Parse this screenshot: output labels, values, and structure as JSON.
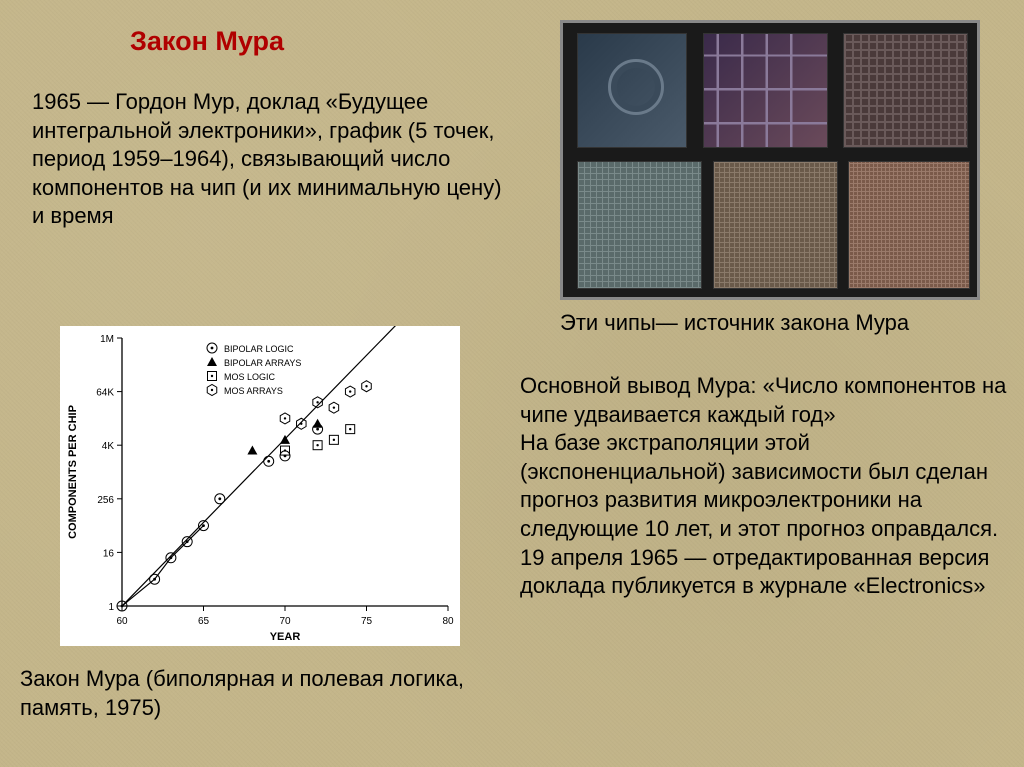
{
  "title": "Закон Мура",
  "intro": "1965 — Гордон Мур, доклад «Будущее интегральной электроники», график (5 точек, период 1959–1964), связывающий число компонентов на чип (и их минимальную цену) и время",
  "chip_caption": "Эти чипы— источник закона Мура",
  "chart_caption": "Закон Мура (биполярная и полевая логика, память, 1975)",
  "body": "Основной вывод Мура: «Число компонентов на чипе удваивается каждый год»\nНа базе экстраполяции этой (экспоненциальной) зависимости был сделан прогноз развития микроэлектроники на следующие 10 лет, и этот прогноз оправдался.\n19 апреля 1965 — отредактированная версия доклада публикуется в журнале «Electronics»",
  "chart": {
    "type": "scatter-log",
    "xlabel": "YEAR",
    "ylabel": "COMPONENTS PER CHIP",
    "xlim": [
      60,
      80
    ],
    "xtick_step": 5,
    "yticks": [
      1,
      16,
      256,
      "4K",
      "64K",
      "1M"
    ],
    "yscale": "log",
    "font": "sans-serif",
    "label_fontsize": 11,
    "tick_fontsize": 10,
    "legend_fontsize": 9,
    "axis_color": "#000000",
    "background_color": "#ffffff",
    "marker_size": 5,
    "line_width": 1.2,
    "legend": [
      {
        "label": "BIPOLAR LOGIC",
        "marker": "circle-dot"
      },
      {
        "label": "BIPOLAR ARRAYS",
        "marker": "triangle"
      },
      {
        "label": "MOS LOGIC",
        "marker": "square"
      },
      {
        "label": "MOS ARRAYS",
        "marker": "hexagon"
      }
    ],
    "trend_line": {
      "x1": 60,
      "y1_log": 0,
      "x2": 77,
      "y2_log": 5.3
    },
    "line_connect": [
      {
        "x": 60,
        "ylog": 0
      },
      {
        "x": 62,
        "ylog": 0.5
      },
      {
        "x": 63,
        "ylog": 0.9
      },
      {
        "x": 64,
        "ylog": 1.2
      },
      {
        "x": 65,
        "ylog": 1.5
      }
    ],
    "points": {
      "circle-dot": [
        {
          "x": 60,
          "ylog": 0
        },
        {
          "x": 62,
          "ylog": 0.5
        },
        {
          "x": 63,
          "ylog": 0.9
        },
        {
          "x": 64,
          "ylog": 1.2
        },
        {
          "x": 65,
          "ylog": 1.5
        },
        {
          "x": 66,
          "ylog": 2.0
        },
        {
          "x": 69,
          "ylog": 2.7
        },
        {
          "x": 70,
          "ylog": 2.8
        },
        {
          "x": 72,
          "ylog": 3.3
        }
      ],
      "triangle": [
        {
          "x": 68,
          "ylog": 2.9
        },
        {
          "x": 70,
          "ylog": 3.1
        },
        {
          "x": 72,
          "ylog": 3.4
        }
      ],
      "square": [
        {
          "x": 70,
          "ylog": 2.9
        },
        {
          "x": 72,
          "ylog": 3.0
        },
        {
          "x": 73,
          "ylog": 3.1
        },
        {
          "x": 74,
          "ylog": 3.3
        }
      ],
      "hexagon": [
        {
          "x": 70,
          "ylog": 3.5
        },
        {
          "x": 71,
          "ylog": 3.4
        },
        {
          "x": 72,
          "ylog": 3.8
        },
        {
          "x": 73,
          "ylog": 3.7
        },
        {
          "x": 74,
          "ylog": 4.0
        },
        {
          "x": 75,
          "ylog": 4.1
        }
      ]
    }
  }
}
